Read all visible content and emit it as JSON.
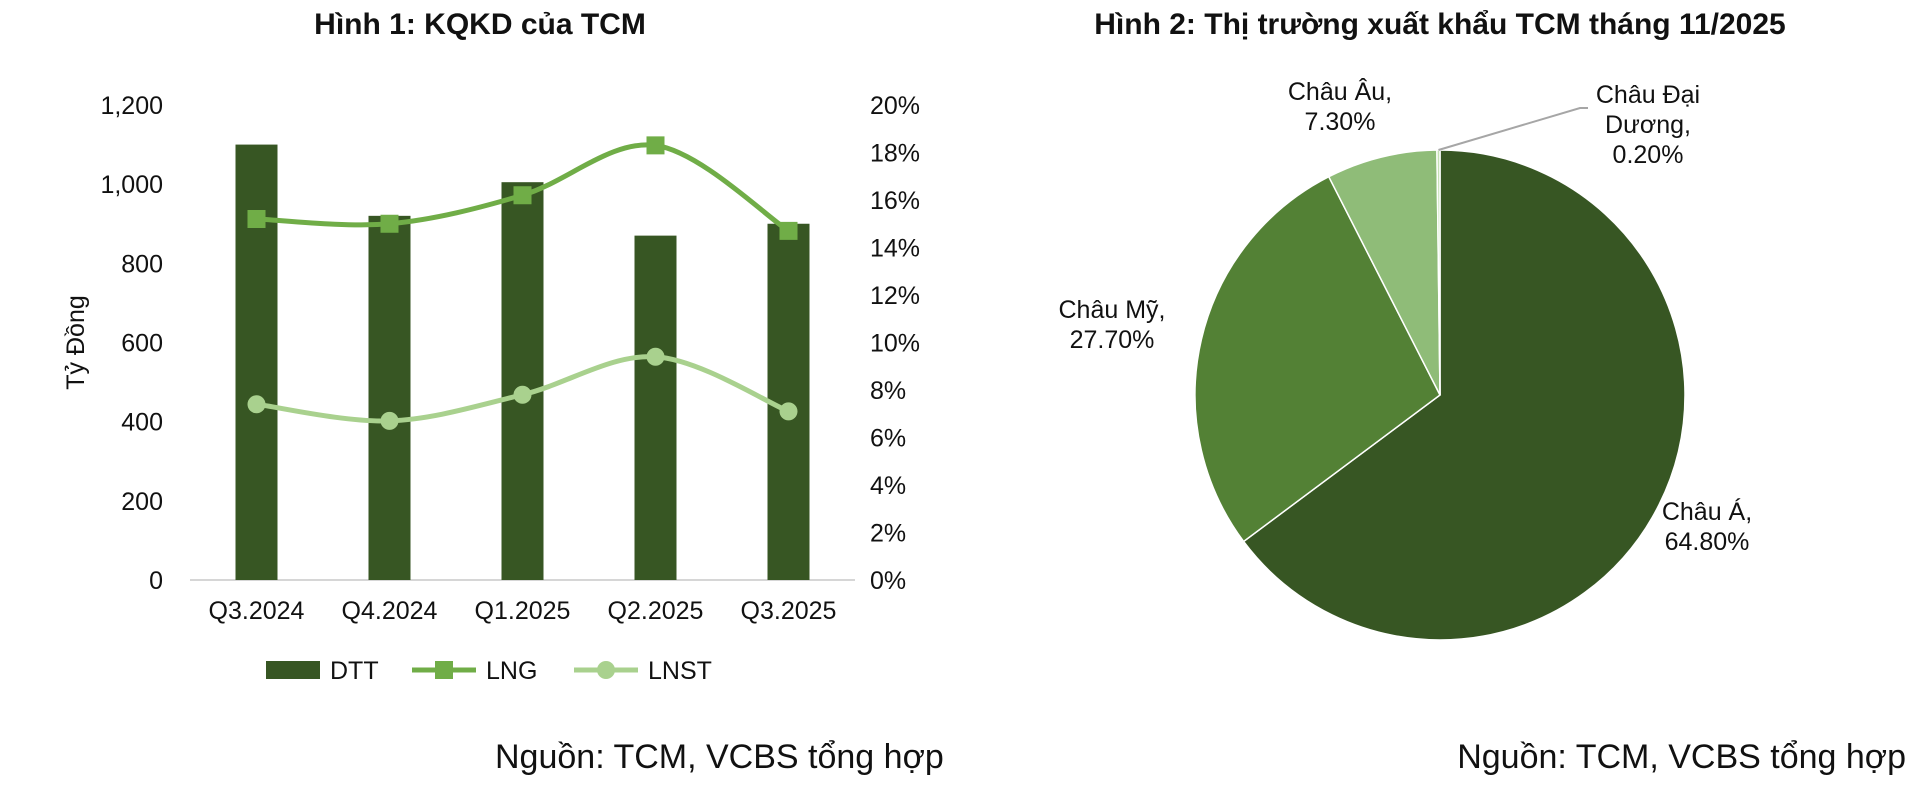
{
  "figure1": {
    "title": "Hình 1: KQKD của TCM",
    "source": "Nguồn: TCM, VCBS tổng hợp"
  },
  "figure2": {
    "title": "Hình 2: Thị trường xuất khẩu TCM tháng 11/2025",
    "source": "Nguồn: TCM, VCBS tổng hợp"
  },
  "chart_data": [
    {
      "type": "bar",
      "title": "Hình 1: KQKD của TCM",
      "categories": [
        "Q3.2024",
        "Q4.2024",
        "Q1.2025",
        "Q2.2025",
        "Q3.2025"
      ],
      "ylabel": "Tỷ Đồng",
      "ylim": [
        0,
        1200
      ],
      "y_ticks": [
        "0",
        "200",
        "400",
        "600",
        "800",
        "1,000",
        "1,200"
      ],
      "y2lim": [
        0,
        20
      ],
      "y2_ticks": [
        "0%",
        "2%",
        "4%",
        "6%",
        "8%",
        "10%",
        "12%",
        "14%",
        "16%",
        "18%",
        "20%"
      ],
      "legend_position": "bottom",
      "series": [
        {
          "name": "DTT",
          "type": "bar",
          "axis": "left",
          "values": [
            1100,
            920,
            1005,
            870,
            900
          ],
          "color": "#375623"
        },
        {
          "name": "LNG",
          "type": "line",
          "axis": "right",
          "marker": "square",
          "values": [
            15.2,
            15.0,
            16.2,
            18.3,
            14.7
          ],
          "color": "#70AD47"
        },
        {
          "name": "LNST",
          "type": "line",
          "axis": "right",
          "marker": "circle",
          "values": [
            7.4,
            6.7,
            7.8,
            9.4,
            7.1
          ],
          "color": "#A9D18E"
        }
      ]
    },
    {
      "type": "pie",
      "title": "Hình 2: Thị trường xuất khẩu TCM tháng 11/2025",
      "slices": [
        {
          "name": "Châu Á",
          "value": 64.8,
          "label_lines": [
            "Châu Á,",
            "64.80%"
          ],
          "color": "#375623"
        },
        {
          "name": "Châu Mỹ",
          "value": 27.7,
          "label_lines": [
            "Châu Mỹ,",
            "27.70%"
          ],
          "color": "#538135"
        },
        {
          "name": "Châu Âu",
          "value": 7.3,
          "label_lines": [
            "Châu Âu,",
            "7.30%"
          ],
          "color": "#8FBC78"
        },
        {
          "name": "Châu Đại Dương",
          "value": 0.2,
          "label_lines": [
            "Châu Đại",
            "Dương,",
            "0.20%"
          ],
          "color": "#C5E0B4"
        }
      ]
    }
  ]
}
